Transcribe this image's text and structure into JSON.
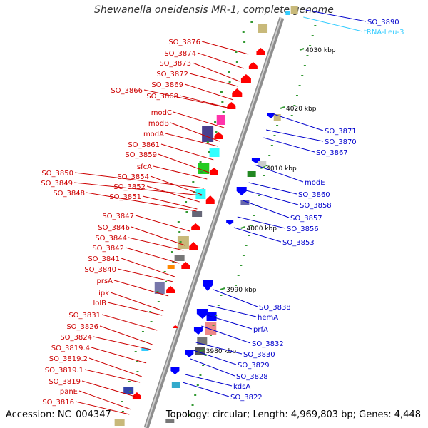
{
  "title": "Shewanella oneidensis MR-1, complete genome",
  "footer": {
    "accession": "Accession: NC_004347",
    "summary": "Topology: circular; Length: 4,969,803 bp; Genes: 4,448"
  },
  "colors": {
    "backbone": "#999999",
    "forward_gene": "#ff0000",
    "reverse_gene": "#0000ff",
    "trna": "#33ccff",
    "tick": "#339933",
    "left_label": "#cc0000",
    "right_label": "#0000cc"
  },
  "ticks": [
    {
      "label": "4030 kbp"
    },
    {
      "label": "4020 kbp"
    },
    {
      "label": "4010 kbp"
    },
    {
      "label": "4000 kbp"
    },
    {
      "label": "3990 kbp"
    },
    {
      "label": "3980 kbp"
    }
  ],
  "left_labels": [
    "SO_3876",
    "SO_3874",
    "SO_3873",
    "SO_3872",
    "SO_3869",
    "SO_3866",
    "SO_3868",
    "modC",
    "modB",
    "modA",
    "SO_3861",
    "SO_3859",
    "sfcA",
    "SO_3850",
    "SO_3854",
    "SO_3849",
    "SO_3852",
    "SO_3848",
    "SO_3851",
    "SO_3847",
    "SO_3846",
    "SO_3844",
    "SO_3842",
    "SO_3841",
    "SO_3840",
    "prsA",
    "ipk",
    "lolB",
    "SO_3831",
    "SO_3826",
    "SO_3824",
    "SO_3819.4",
    "SO_3819.2",
    "SO_3819.1",
    "SO_3819",
    "panE",
    "SO_3816"
  ],
  "right_labels": [
    {
      "text": "SO_3890",
      "type": "gene"
    },
    {
      "text": "tRNA-Leu-3",
      "type": "trna"
    },
    {
      "text": "SO_3871",
      "type": "gene"
    },
    {
      "text": "SO_3870",
      "type": "gene"
    },
    {
      "text": "SO_3867",
      "type": "gene"
    },
    {
      "text": "modE",
      "type": "gene"
    },
    {
      "text": "SO_3860",
      "type": "gene"
    },
    {
      "text": "SO_3858",
      "type": "gene"
    },
    {
      "text": "SO_3857",
      "type": "gene"
    },
    {
      "text": "SO_3856",
      "type": "gene"
    },
    {
      "text": "SO_3853",
      "type": "gene"
    },
    {
      "text": "SO_3838",
      "type": "gene"
    },
    {
      "text": "hemA",
      "type": "gene"
    },
    {
      "text": "prfA",
      "type": "gene"
    },
    {
      "text": "SO_3832",
      "type": "gene"
    },
    {
      "text": "SO_3830",
      "type": "gene"
    },
    {
      "text": "SO_3829",
      "type": "gene"
    },
    {
      "text": "SO_3828",
      "type": "gene"
    },
    {
      "text": "kdsA",
      "type": "gene"
    },
    {
      "text": "SO_3822",
      "type": "gene"
    }
  ]
}
